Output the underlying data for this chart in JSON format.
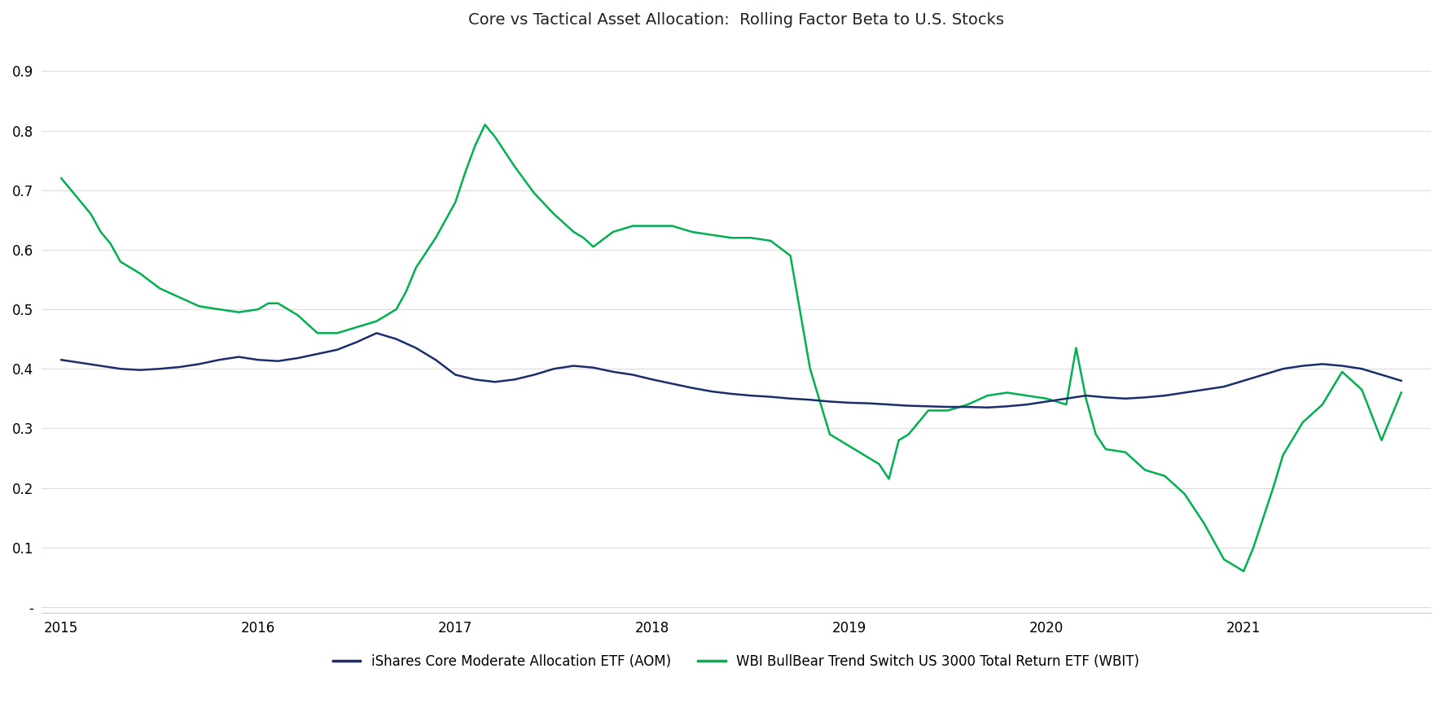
{
  "title": "Core vs Tactical Asset Allocation:  Rolling Factor Beta to U.S. Stocks",
  "title_fontsize": 14,
  "background_color": "#ffffff",
  "aom_color": "#1a2e6e",
  "wbit_color": "#00b050",
  "aom_label": "iShares Core Moderate Allocation ETF (AOM)",
  "wbit_label": "WBI BullBear Trend Switch US 3000 Total Return ETF (WBIT)",
  "line_width": 1.8,
  "yticks": [
    0.0,
    0.1,
    0.2,
    0.3,
    0.4,
    0.5,
    0.6,
    0.7,
    0.8,
    0.9
  ],
  "ytick_labels": [
    "-",
    "0.1",
    "0.2",
    "0.3",
    "0.4",
    "0.5",
    "0.6",
    "0.7",
    "0.8",
    "0.9"
  ],
  "ylim": [
    -0.01,
    0.95
  ],
  "xlim_start": 2014.9,
  "xlim_end": 2021.95,
  "aom_x": [
    2015.0,
    2015.1,
    2015.2,
    2015.3,
    2015.4,
    2015.5,
    2015.6,
    2015.7,
    2015.8,
    2015.9,
    2016.0,
    2016.1,
    2016.2,
    2016.3,
    2016.4,
    2016.5,
    2016.6,
    2016.7,
    2016.8,
    2016.9,
    2017.0,
    2017.1,
    2017.2,
    2017.3,
    2017.4,
    2017.5,
    2017.6,
    2017.7,
    2017.8,
    2017.9,
    2018.0,
    2018.1,
    2018.2,
    2018.3,
    2018.4,
    2018.5,
    2018.6,
    2018.7,
    2018.8,
    2018.9,
    2019.0,
    2019.1,
    2019.2,
    2019.3,
    2019.4,
    2019.5,
    2019.6,
    2019.7,
    2019.8,
    2019.9,
    2020.0,
    2020.1,
    2020.2,
    2020.3,
    2020.4,
    2020.5,
    2020.6,
    2020.7,
    2020.8,
    2020.9,
    2021.0,
    2021.1,
    2021.2,
    2021.3,
    2021.4,
    2021.5,
    2021.6,
    2021.7,
    2021.8
  ],
  "aom_y": [
    0.415,
    0.41,
    0.405,
    0.4,
    0.398,
    0.4,
    0.403,
    0.408,
    0.415,
    0.42,
    0.415,
    0.413,
    0.418,
    0.425,
    0.432,
    0.445,
    0.46,
    0.45,
    0.435,
    0.415,
    0.39,
    0.382,
    0.378,
    0.382,
    0.39,
    0.4,
    0.405,
    0.402,
    0.395,
    0.39,
    0.382,
    0.375,
    0.368,
    0.362,
    0.358,
    0.355,
    0.353,
    0.35,
    0.348,
    0.345,
    0.343,
    0.342,
    0.34,
    0.338,
    0.337,
    0.336,
    0.336,
    0.335,
    0.337,
    0.34,
    0.345,
    0.35,
    0.355,
    0.352,
    0.35,
    0.352,
    0.355,
    0.36,
    0.365,
    0.37,
    0.38,
    0.39,
    0.4,
    0.405,
    0.408,
    0.405,
    0.4,
    0.39,
    0.38
  ],
  "wbit_x": [
    2015.0,
    2015.05,
    2015.1,
    2015.15,
    2015.2,
    2015.25,
    2015.3,
    2015.4,
    2015.5,
    2015.6,
    2015.7,
    2015.8,
    2015.9,
    2016.0,
    2016.05,
    2016.1,
    2016.15,
    2016.2,
    2016.25,
    2016.3,
    2016.4,
    2016.5,
    2016.6,
    2016.7,
    2016.75,
    2016.8,
    2016.9,
    2017.0,
    2017.05,
    2017.1,
    2017.15,
    2017.2,
    2017.3,
    2017.4,
    2017.5,
    2017.6,
    2017.65,
    2017.7,
    2017.8,
    2017.9,
    2018.0,
    2018.1,
    2018.2,
    2018.3,
    2018.4,
    2018.5,
    2018.6,
    2018.7,
    2018.8,
    2018.9,
    2019.0,
    2019.05,
    2019.1,
    2019.15,
    2019.2,
    2019.25,
    2019.3,
    2019.35,
    2019.4,
    2019.5,
    2019.6,
    2019.7,
    2019.8,
    2019.9,
    2020.0,
    2020.05,
    2020.1,
    2020.15,
    2020.2,
    2020.25,
    2020.3,
    2020.4,
    2020.5,
    2020.6,
    2020.7,
    2020.8,
    2020.9,
    2021.0,
    2021.05,
    2021.1,
    2021.15,
    2021.2,
    2021.3,
    2021.4,
    2021.5,
    2021.6,
    2021.7,
    2021.8
  ],
  "wbit_y": [
    0.72,
    0.7,
    0.68,
    0.66,
    0.63,
    0.61,
    0.58,
    0.56,
    0.535,
    0.52,
    0.505,
    0.5,
    0.495,
    0.5,
    0.51,
    0.51,
    0.5,
    0.49,
    0.475,
    0.46,
    0.46,
    0.47,
    0.48,
    0.5,
    0.53,
    0.57,
    0.62,
    0.68,
    0.73,
    0.775,
    0.81,
    0.79,
    0.74,
    0.695,
    0.66,
    0.63,
    0.62,
    0.605,
    0.63,
    0.64,
    0.64,
    0.64,
    0.63,
    0.625,
    0.62,
    0.62,
    0.615,
    0.59,
    0.4,
    0.29,
    0.27,
    0.26,
    0.25,
    0.24,
    0.215,
    0.28,
    0.29,
    0.31,
    0.33,
    0.33,
    0.34,
    0.355,
    0.36,
    0.355,
    0.35,
    0.345,
    0.34,
    0.435,
    0.35,
    0.29,
    0.265,
    0.26,
    0.23,
    0.22,
    0.19,
    0.14,
    0.08,
    0.06,
    0.1,
    0.15,
    0.2,
    0.255,
    0.31,
    0.34,
    0.395,
    0.365,
    0.28,
    0.36
  ]
}
